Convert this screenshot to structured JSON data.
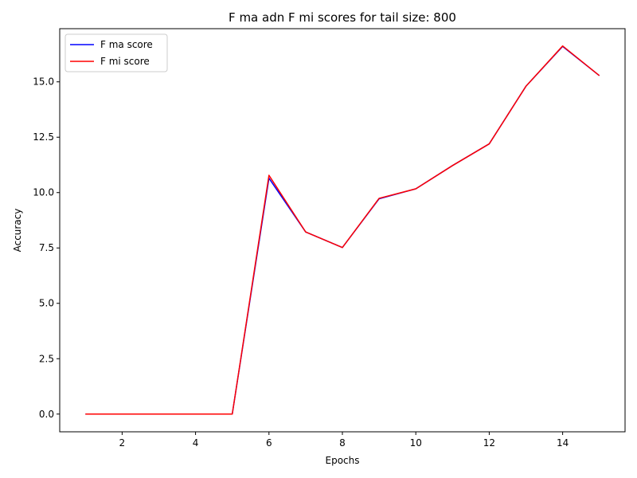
{
  "chart_data": {
    "type": "line",
    "title": "F ma adn F mi scores for tail size: 800",
    "xlabel": "Epochs",
    "ylabel": "Accuracy",
    "x": [
      1,
      2,
      3,
      4,
      5,
      6,
      7,
      8,
      9,
      10,
      11,
      12,
      13,
      14,
      15
    ],
    "xlim": [
      0.3,
      15.7
    ],
    "ylim": [
      -0.8,
      17.4
    ],
    "xticks": [
      2,
      4,
      6,
      8,
      10,
      12,
      14
    ],
    "xtick_labels": [
      "2",
      "4",
      "6",
      "8",
      "10",
      "12",
      "14"
    ],
    "yticks": [
      0.0,
      2.5,
      5.0,
      7.5,
      10.0,
      12.5,
      15.0
    ],
    "ytick_labels": [
      "0.0",
      "2.5",
      "5.0",
      "7.5",
      "10.0",
      "12.5",
      "15.0"
    ],
    "grid": false,
    "legend_position": "top-left",
    "series": [
      {
        "name": "F ma score",
        "color": "#0000ff",
        "values": [
          0,
          0,
          0,
          0,
          0,
          10.65,
          8.22,
          7.52,
          9.72,
          10.17,
          11.22,
          12.2,
          14.8,
          16.6,
          15.28
        ]
      },
      {
        "name": "F mi score",
        "color": "#ff0000",
        "values": [
          0,
          0,
          0,
          0,
          0,
          10.78,
          8.22,
          7.52,
          9.74,
          10.17,
          11.22,
          12.2,
          14.8,
          16.62,
          15.28
        ]
      }
    ]
  }
}
